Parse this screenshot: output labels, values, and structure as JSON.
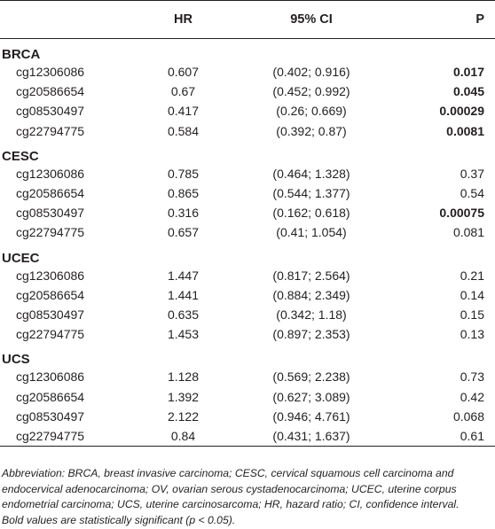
{
  "header": {
    "label": "",
    "hr": "HR",
    "ci": "95% CI",
    "p": "P"
  },
  "groups": [
    {
      "name": "BRCA",
      "rows": [
        {
          "probe": "cg12306086",
          "hr": "0.607",
          "ci": "(0.402; 0.916)",
          "p": "0.017",
          "significant": true
        },
        {
          "probe": "cg20586654",
          "hr": "0.67",
          "ci": "(0.452; 0.992)",
          "p": "0.045",
          "significant": true
        },
        {
          "probe": "cg08530497",
          "hr": "0.417",
          "ci": "(0.26; 0.669)",
          "p": "0.00029",
          "significant": true
        },
        {
          "probe": "cg22794775",
          "hr": "0.584",
          "ci": "(0.392; 0.87)",
          "p": "0.0081",
          "significant": true
        }
      ]
    },
    {
      "name": "CESC",
      "rows": [
        {
          "probe": "cg12306086",
          "hr": "0.785",
          "ci": "(0.464; 1.328)",
          "p": "0.37",
          "significant": false
        },
        {
          "probe": "cg20586654",
          "hr": "0.865",
          "ci": "(0.544; 1.377)",
          "p": "0.54",
          "significant": false
        },
        {
          "probe": "cg08530497",
          "hr": "0.316",
          "ci": "(0.162; 0.618)",
          "p": "0.00075",
          "significant": true
        },
        {
          "probe": "cg22794775",
          "hr": "0.657",
          "ci": "(0.41; 1.054)",
          "p": "0.081",
          "significant": false
        }
      ]
    },
    {
      "name": "UCEC",
      "rows": [
        {
          "probe": "cg12306086",
          "hr": "1.447",
          "ci": "(0.817; 2.564)",
          "p": "0.21",
          "significant": false
        },
        {
          "probe": "cg20586654",
          "hr": "1.441",
          "ci": "(0.884; 2.349)",
          "p": "0.14",
          "significant": false
        },
        {
          "probe": "cg08530497",
          "hr": "0.635",
          "ci": "(0.342; 1.18)",
          "p": "0.15",
          "significant": false
        },
        {
          "probe": "cg22794775",
          "hr": "1.453",
          "ci": "(0.897; 2.353)",
          "p": "0.13",
          "significant": false
        }
      ]
    },
    {
      "name": "UCS",
      "rows": [
        {
          "probe": "cg12306086",
          "hr": "1.128",
          "ci": "(0.569; 2.238)",
          "p": "0.73",
          "significant": false
        },
        {
          "probe": "cg20586654",
          "hr": "1.392",
          "ci": "(0.627; 3.089)",
          "p": "0.42",
          "significant": false
        },
        {
          "probe": "cg08530497",
          "hr": "2.122",
          "ci": "(0.946; 4.761)",
          "p": "0.068",
          "significant": false
        },
        {
          "probe": "cg22794775",
          "hr": "0.84",
          "ci": "(0.431; 1.637)",
          "p": "0.61",
          "significant": false
        }
      ]
    }
  ],
  "footnotes": {
    "abbreviation": "Abbreviation: BRCA, breast invasive carcinoma; CESC, cervical squamous cell carcinoma and endocervical adenocarcinoma; OV, ovarian serous cystadenocarcinoma; UCEC, uterine corpus endometrial carcinoma; UCS, uterine carcinosarcoma; HR, hazard ratio; CI, confidence interval.",
    "bold_note": "Bold values are statistically significant (p < 0.05)."
  }
}
